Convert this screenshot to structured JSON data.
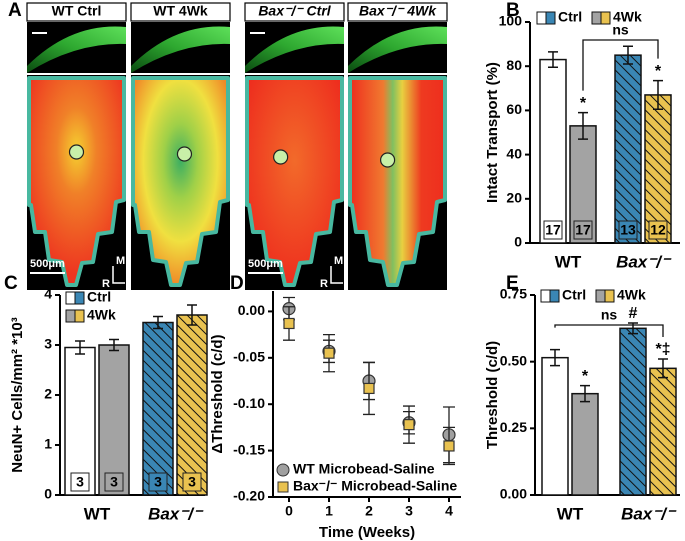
{
  "panel_a": {
    "letter": "A",
    "images": [
      "WT Ctrl",
      "WT 4Wk",
      "Bax⁻/⁻ Ctrl",
      "Bax⁻/⁻ 4Wk"
    ],
    "scale_bar": "500μm",
    "orientation": [
      "M",
      "R"
    ]
  },
  "chart_data": [
    {
      "type": "bar",
      "panel": "B",
      "ylabel": "Intact Transport (%)",
      "categories": [
        "WT",
        "Bax⁻/⁻"
      ],
      "hatch": [
        false,
        true
      ],
      "series": [
        {
          "name": "Ctrl",
          "colors": [
            "#ffffff",
            "#3a86b4"
          ],
          "values": [
            83,
            85
          ],
          "errors": [
            3.5,
            4
          ],
          "n": [
            17,
            13
          ],
          "annotations": [
            null,
            null
          ]
        },
        {
          "name": "4Wk",
          "colors": [
            "#a3a3a3",
            "#e9c250"
          ],
          "values": [
            53,
            67
          ],
          "errors": [
            6,
            6.5
          ],
          "n": [
            17,
            12
          ],
          "annotations": [
            "*",
            "*"
          ]
        }
      ],
      "ylim": [
        0,
        100
      ],
      "yticks": [
        0,
        20,
        40,
        60,
        80,
        100
      ],
      "bracket_label": "ns",
      "legend": "top"
    },
    {
      "type": "bar",
      "panel": "C",
      "ylabel": "NeuN+ Cells/mm² *10³",
      "categories": [
        "WT",
        "Bax⁻/⁻"
      ],
      "hatch": [
        false,
        true
      ],
      "series": [
        {
          "name": "Ctrl",
          "colors": [
            "#ffffff",
            "#3a86b4"
          ],
          "values": [
            2.95,
            3.45
          ],
          "errors": [
            0.13,
            0.12
          ],
          "n": [
            3,
            3
          ]
        },
        {
          "name": "4Wk",
          "colors": [
            "#a3a3a3",
            "#e9c250"
          ],
          "values": [
            3.0,
            3.6
          ],
          "errors": [
            0.11,
            0.2
          ],
          "n": [
            3,
            3
          ]
        }
      ],
      "ylim": [
        0,
        4
      ],
      "yticks": [
        0,
        1,
        2,
        3,
        4
      ],
      "legend": "top-left"
    },
    {
      "type": "scatter",
      "panel": "D",
      "xlabel": "Time (Weeks)",
      "ylabel": "ΔThreshold (c/d)",
      "x": [
        0,
        1,
        2,
        3,
        4
      ],
      "series": [
        {
          "name": "WT Microbead-Saline",
          "color": "#a0a0a0",
          "marker": "circle",
          "values": [
            0.003,
            -0.043,
            -0.075,
            -0.12,
            -0.133
          ],
          "errors": [
            0.012,
            0.012,
            0.02,
            0.012,
            0.03
          ]
        },
        {
          "name": "Bax⁻/⁻ Microbead-Saline",
          "color": "#e9c250",
          "marker": "square",
          "values": [
            -0.013,
            -0.045,
            -0.083,
            -0.122,
            -0.145
          ],
          "errors": [
            0.018,
            0.02,
            0.028,
            0.02,
            0.02
          ]
        }
      ],
      "xlim": [
        -0.4,
        4.3
      ],
      "xticks": [
        0,
        1,
        2,
        3,
        4
      ],
      "ylim": [
        -0.2,
        0.022
      ],
      "yticks": [
        {
          "value": 0,
          "label": "0.00"
        },
        {
          "value": -0.05,
          "label": "-0.05"
        },
        {
          "value": -0.1,
          "label": "-0.10"
        },
        {
          "value": -0.15,
          "label": "-0.15"
        },
        {
          "value": -0.2,
          "label": "-0.20"
        }
      ],
      "legend": "bottom-left"
    },
    {
      "type": "bar",
      "panel": "E",
      "ylabel": "Threshold (c/d)",
      "categories": [
        "WT",
        "Bax⁻/⁻"
      ],
      "hatch": [
        false,
        true
      ],
      "series": [
        {
          "name": "Ctrl",
          "colors": [
            "#ffffff",
            "#3a86b4"
          ],
          "values": [
            0.515,
            0.625
          ],
          "errors": [
            0.03,
            0.02
          ],
          "annotations": [
            null,
            "#"
          ]
        },
        {
          "name": "4Wk",
          "colors": [
            "#a3a3a3",
            "#e9c250"
          ],
          "values": [
            0.38,
            0.475
          ],
          "errors": [
            0.03,
            0.035
          ],
          "annotations": [
            "*",
            "*‡"
          ]
        }
      ],
      "ylim": [
        0,
        0.75
      ],
      "yticks": [
        {
          "value": 0,
          "label": "0.00"
        },
        {
          "value": 0.25,
          "label": "0.25"
        },
        {
          "value": 0.5,
          "label": "0.50"
        },
        {
          "value": 0.75,
          "label": "0.75"
        }
      ],
      "bracket_label": "ns",
      "legend": "top"
    }
  ]
}
